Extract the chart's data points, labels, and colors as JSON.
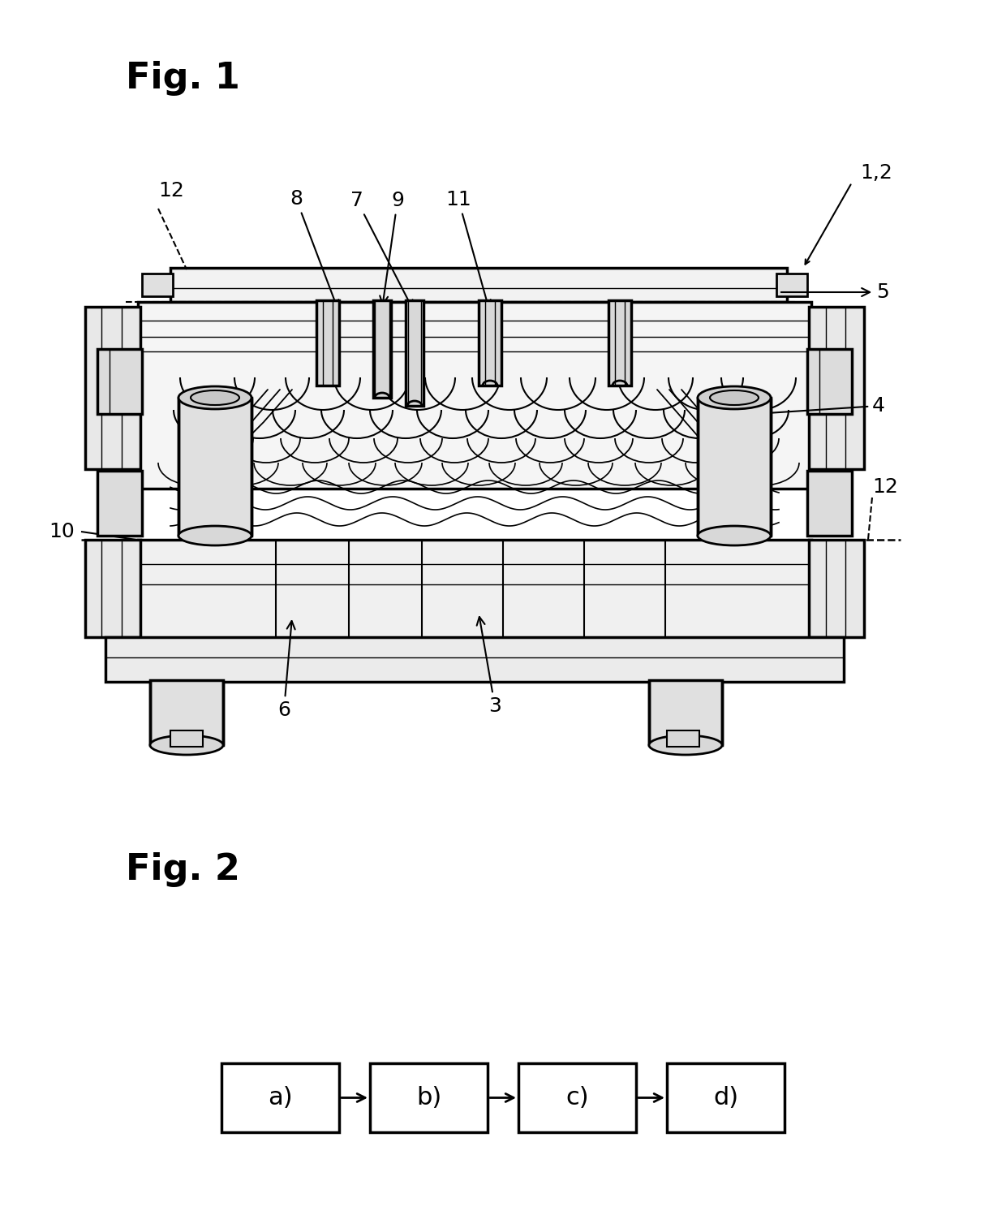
{
  "fig1_label": "Fig. 1",
  "fig2_label": "Fig. 2",
  "fig_label_fontsize": 32,
  "fig_label_fontweight": "bold",
  "background_color": "#ffffff",
  "text_color": "#000000",
  "line_color": "#000000",
  "flowchart_labels": [
    "a)",
    "b)",
    "c)",
    "d)"
  ],
  "label_fontsize": 18,
  "annotation_fontsize": 18
}
